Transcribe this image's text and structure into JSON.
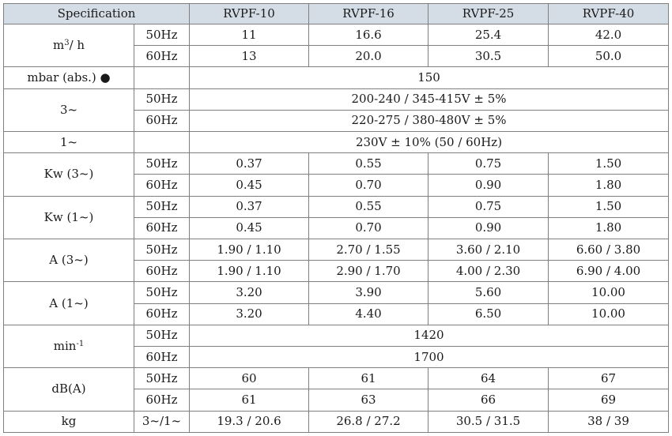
{
  "header": {
    "specification": "Specification",
    "models": [
      "RVPF-10",
      "RVPF-16",
      "RVPF-25",
      "RVPF-40"
    ]
  },
  "rows": {
    "flow": {
      "unit_base": "m",
      "unit_sup": "3",
      "unit_tail": "/ h",
      "hz50": {
        "freq": "50Hz",
        "values": [
          "11",
          "16.6",
          "25.4",
          "42.0"
        ]
      },
      "hz60": {
        "freq": "60Hz",
        "values": [
          "13",
          "20.0",
          "30.5",
          "50.0"
        ]
      }
    },
    "pressure": {
      "unit": "mbar (abs.) ●",
      "value": "150"
    },
    "three_phase": {
      "unit": "3~",
      "hz50": {
        "freq": "50Hz",
        "value": "200-240 / 345-415V ± 5%"
      },
      "hz60": {
        "freq": "60Hz",
        "value": "220-275 / 380-480V ± 5%"
      }
    },
    "single_phase": {
      "unit": "1~",
      "value": "230V ± 10% (50 / 60Hz)"
    },
    "kw3": {
      "unit": "Kw (3~)",
      "hz50": {
        "freq": "50Hz",
        "values": [
          "0.37",
          "0.55",
          "0.75",
          "1.50"
        ]
      },
      "hz60": {
        "freq": "60Hz",
        "values": [
          "0.45",
          "0.70",
          "0.90",
          "1.80"
        ]
      }
    },
    "kw1": {
      "unit": "Kw (1~)",
      "hz50": {
        "freq": "50Hz",
        "values": [
          "0.37",
          "0.55",
          "0.75",
          "1.50"
        ]
      },
      "hz60": {
        "freq": "60Hz",
        "values": [
          "0.45",
          "0.70",
          "0.90",
          "1.80"
        ]
      }
    },
    "amp3": {
      "unit": "A (3~)",
      "hz50": {
        "freq": "50Hz",
        "values": [
          "1.90 / 1.10",
          "2.70 / 1.55",
          "3.60 / 2.10",
          "6.60 / 3.80"
        ]
      },
      "hz60": {
        "freq": "60Hz",
        "values": [
          "1.90 / 1.10",
          "2.90 / 1.70",
          "4.00 / 2.30",
          "6.90 / 4.00"
        ]
      }
    },
    "amp1": {
      "unit": "A (1~)",
      "hz50": {
        "freq": "50Hz",
        "values": [
          "3.20",
          "3.90",
          "5.60",
          "10.00"
        ]
      },
      "hz60": {
        "freq": "60Hz",
        "values": [
          "3.20",
          "4.40",
          "6.50",
          "10.00"
        ]
      }
    },
    "speed": {
      "unit_base": "min",
      "unit_sup": "-1",
      "hz50": {
        "freq": "50Hz",
        "value": "1420"
      },
      "hz60": {
        "freq": "60Hz",
        "value": "1700"
      }
    },
    "noise": {
      "unit": "dB(A)",
      "hz50": {
        "freq": "50Hz",
        "values": [
          "60",
          "61",
          "64",
          "67"
        ]
      },
      "hz60": {
        "freq": "60Hz",
        "values": [
          "61",
          "63",
          "66",
          "69"
        ]
      }
    },
    "weight": {
      "unit": "kg",
      "phase": "3~/1~",
      "values": [
        "19.3 / 20.6",
        "26.8 / 27.2",
        "30.5 / 31.5",
        "38 / 39"
      ]
    }
  },
  "colors": {
    "header_bg": "#d4dde6",
    "border": "#7f7f7f",
    "text": "#1a1a1a"
  }
}
